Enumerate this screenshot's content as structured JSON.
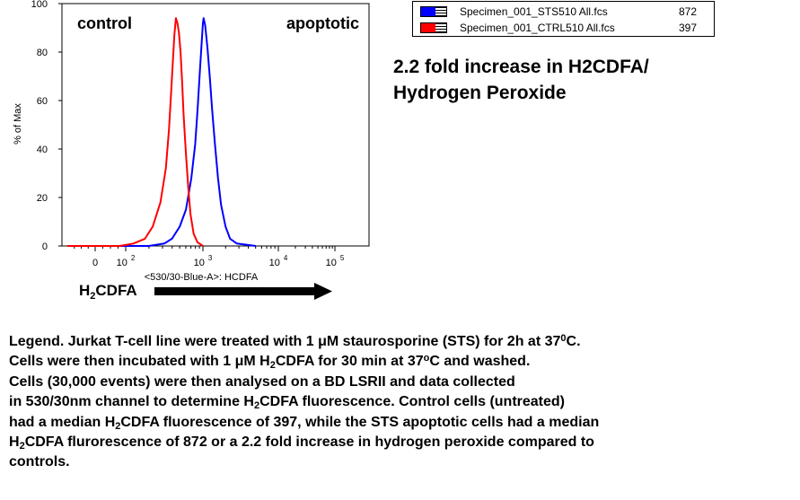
{
  "chart_data": {
    "type": "line",
    "title": "",
    "xlabel": "<530/30-Blue-A>: HCDFA",
    "ylabel": "% of Max",
    "ylim": [
      0,
      100
    ],
    "yticks": [
      "0",
      "20",
      "40",
      "60",
      "80",
      "100"
    ],
    "xaxis_scale": "log",
    "xticks": [
      {
        "base": "0",
        "exp": ""
      },
      {
        "base": "10",
        "exp": "2"
      },
      {
        "base": "10",
        "exp": "3"
      },
      {
        "base": "10",
        "exp": "4"
      },
      {
        "base": "10",
        "exp": "5"
      }
    ],
    "series": [
      {
        "name": "Specimen_001_STS510 All.fcs",
        "color": "#0000ff",
        "count": "872",
        "points": [
          [
            0.0,
            0
          ],
          [
            2.3,
            0
          ],
          [
            2.5,
            1
          ],
          [
            2.6,
            3
          ],
          [
            2.7,
            8
          ],
          [
            2.78,
            15
          ],
          [
            2.85,
            28
          ],
          [
            2.9,
            42
          ],
          [
            2.93,
            56
          ],
          [
            2.96,
            72
          ],
          [
            2.98,
            82
          ],
          [
            3.0,
            92
          ],
          [
            3.01,
            94
          ],
          [
            3.03,
            91
          ],
          [
            3.06,
            82
          ],
          [
            3.09,
            70
          ],
          [
            3.12,
            57
          ],
          [
            3.16,
            42
          ],
          [
            3.2,
            28
          ],
          [
            3.24,
            17
          ],
          [
            3.3,
            8
          ],
          [
            3.36,
            3
          ],
          [
            3.45,
            1
          ],
          [
            3.7,
            0
          ]
        ]
      },
      {
        "name": "Specimen_001_CTRL510 All.fcs",
        "color": "#ff0000",
        "count": "397",
        "points": [
          [
            -0.4,
            0
          ],
          [
            0.3,
            0
          ],
          [
            1.6,
            0
          ],
          [
            2.1,
            1
          ],
          [
            2.25,
            3
          ],
          [
            2.35,
            8
          ],
          [
            2.45,
            18
          ],
          [
            2.52,
            32
          ],
          [
            2.56,
            48
          ],
          [
            2.59,
            64
          ],
          [
            2.61,
            76
          ],
          [
            2.63,
            87
          ],
          [
            2.65,
            94
          ],
          [
            2.67,
            92
          ],
          [
            2.69,
            88
          ],
          [
            2.71,
            80
          ],
          [
            2.73,
            68
          ],
          [
            2.75,
            54
          ],
          [
            2.78,
            38
          ],
          [
            2.81,
            24
          ],
          [
            2.84,
            13
          ],
          [
            2.88,
            5
          ],
          [
            2.93,
            1.5
          ],
          [
            3.0,
            0
          ]
        ]
      }
    ],
    "annotations": [
      "control",
      "apoptotic"
    ],
    "grid": false,
    "legend_position": "top-right"
  },
  "arrow": {
    "label_main": "H",
    "label_sub": "2",
    "label_rest": "CDFA"
  },
  "headline": {
    "line1": "2.2 fold increase in H2CDFA/",
    "line2": "Hydrogen Peroxide"
  },
  "caption": {
    "l1a": "Legend. Jurkat T-cell line were treated with 1 ",
    "l1mu": "μ",
    "l1b": "M staurosporine (STS) for 2h at 37",
    "l1sup": "0",
    "l1c": "C.",
    "l2a": "Cells were then incubated with 1 ",
    "l2mu": "μ",
    "l2b": "M H",
    "l2sub": "2",
    "l2c": "CDFA for 30 min at 37",
    "l2sup": "o",
    "l2d": "C and washed.",
    "l3": "Cells (30,000 events) were then analysed on a BD LSRII and data collected",
    "l4a": "in 530/30nm channel to determine H",
    "l4sub": "2",
    "l4b": "CDFA fluorescence. Control cells (untreated)",
    "l5a": "had a median H",
    "l5sub": "2",
    "l5b": "CDFA fluorescence of 397, while the STS apoptotic cells had a median",
    "l6a": "H",
    "l6sub": "2",
    "l6b": "CDFA flurorescence of 872 or a 2.2 fold increase in hydrogen peroxide compared to",
    "l7": "controls."
  }
}
